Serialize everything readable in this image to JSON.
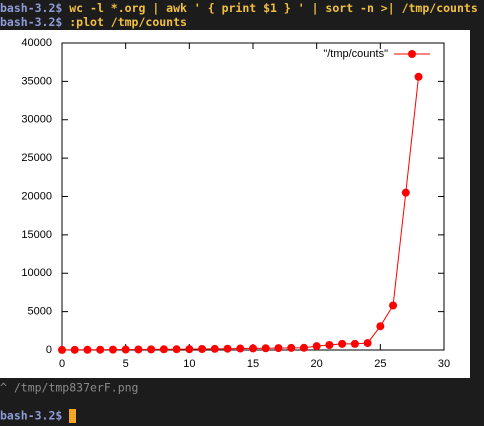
{
  "terminal": {
    "lines": [
      {
        "prompt": "bash-3.2$",
        "command": "wc -l *.org | awk ' { print $1 } ' | sort -n >| /tmp/counts"
      },
      {
        "prompt": "bash-3.2$",
        "command": ":plot /tmp/counts"
      }
    ],
    "output": "^ /tmp/tmp837erF.png",
    "final_prompt": "bash-3.2$"
  },
  "chart_data": {
    "type": "line",
    "x": [
      0,
      1,
      2,
      3,
      4,
      5,
      6,
      7,
      8,
      9,
      10,
      11,
      12,
      13,
      14,
      15,
      16,
      17,
      18,
      19,
      20,
      21,
      22,
      23,
      24,
      25,
      26,
      27,
      28
    ],
    "series": [
      {
        "name": "\"/tmp/counts\"",
        "color": "#ff0000",
        "values": [
          10,
          20,
          30,
          40,
          50,
          60,
          70,
          80,
          90,
          100,
          110,
          130,
          150,
          170,
          190,
          210,
          230,
          250,
          270,
          290,
          500,
          650,
          800,
          800,
          900,
          3100,
          5800,
          20500,
          35600
        ]
      }
    ],
    "xlim": [
      0,
      30
    ],
    "xticks": [
      0,
      5,
      10,
      15,
      20,
      25,
      30
    ],
    "ylim": [
      0,
      40000
    ],
    "yticks": [
      0,
      5000,
      10000,
      15000,
      20000,
      25000,
      30000,
      35000,
      40000
    ],
    "legend": "top-right"
  }
}
